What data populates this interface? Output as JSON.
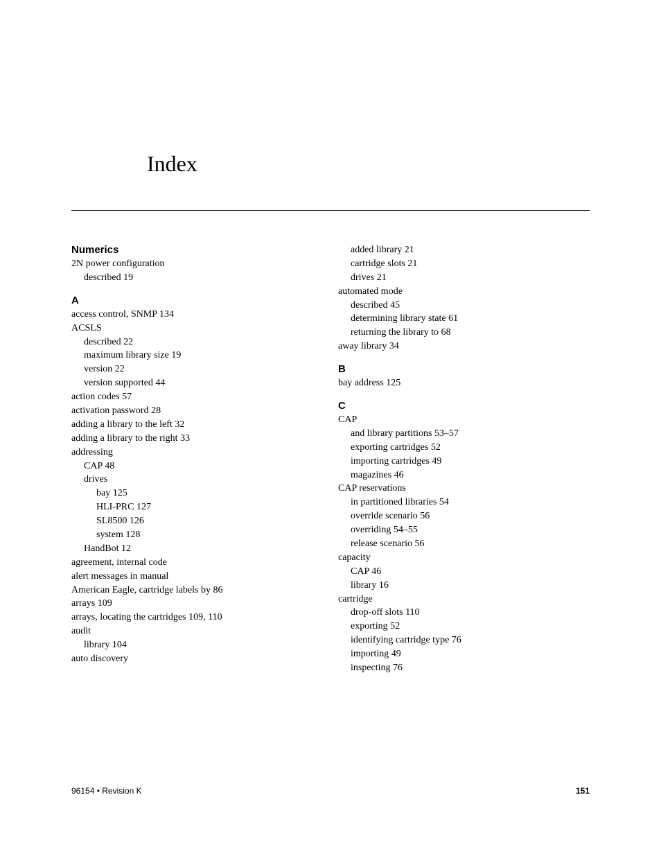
{
  "title": "Index",
  "footer": {
    "left": "96154 • Revision K",
    "page_number": "151"
  },
  "left_column": {
    "sections": [
      {
        "header": "Numerics",
        "entries": [
          {
            "text": "2N power configuration",
            "indent": 0
          },
          {
            "text": "described 19",
            "indent": 1
          }
        ]
      },
      {
        "header": "A",
        "entries": [
          {
            "text": "access control, SNMP 134",
            "indent": 0
          },
          {
            "text": "ACSLS",
            "indent": 0
          },
          {
            "text": "described 22",
            "indent": 1
          },
          {
            "text": "maximum library size 19",
            "indent": 1
          },
          {
            "text": "version 22",
            "indent": 1
          },
          {
            "text": "version supported 44",
            "indent": 1
          },
          {
            "text": "action codes 57",
            "indent": 0
          },
          {
            "text": "activation password 28",
            "indent": 0
          },
          {
            "text": "adding a library to the left 32",
            "indent": 0
          },
          {
            "text": "adding a library to the right 33",
            "indent": 0
          },
          {
            "text": "addressing",
            "indent": 0
          },
          {
            "text": "CAP 48",
            "indent": 1
          },
          {
            "text": "drives",
            "indent": 1
          },
          {
            "text": "bay 125",
            "indent": 2
          },
          {
            "text": "HLI-PRC 127",
            "indent": 2
          },
          {
            "text": "SL8500 126",
            "indent": 2
          },
          {
            "text": "system 128",
            "indent": 2
          },
          {
            "text": "HandBot 12",
            "indent": 1
          },
          {
            "text": "agreement, internal code",
            "indent": 0
          },
          {
            "text": "alert messages in manual",
            "indent": 0
          },
          {
            "text": "American Eagle, cartridge labels by 86",
            "indent": 0
          },
          {
            "text": "arrays 109",
            "indent": 0
          },
          {
            "text": "arrays, locating the cartridges 109, 110",
            "indent": 0
          },
          {
            "text": "audit",
            "indent": 0
          },
          {
            "text": "library 104",
            "indent": 1
          },
          {
            "text": "auto discovery",
            "indent": 0
          }
        ]
      }
    ]
  },
  "right_column": {
    "sections": [
      {
        "header": null,
        "entries": [
          {
            "text": "added library 21",
            "indent": 1
          },
          {
            "text": "cartridge slots 21",
            "indent": 1
          },
          {
            "text": "drives 21",
            "indent": 1
          },
          {
            "text": "automated mode",
            "indent": 0
          },
          {
            "text": "described 45",
            "indent": 1
          },
          {
            "text": "determining library state 61",
            "indent": 1
          },
          {
            "text": "returning the library to 68",
            "indent": 1
          },
          {
            "text": "away library 34",
            "indent": 0
          }
        ]
      },
      {
        "header": "B",
        "entries": [
          {
            "text": "bay address 125",
            "indent": 0
          }
        ]
      },
      {
        "header": "C",
        "entries": [
          {
            "text": "CAP",
            "indent": 0
          },
          {
            "text": "and library partitions 53–57",
            "indent": 1
          },
          {
            "text": "exporting cartridges 52",
            "indent": 1
          },
          {
            "text": "importing cartridges 49",
            "indent": 1
          },
          {
            "text": "magazines 46",
            "indent": 1
          },
          {
            "text": "CAP reservations",
            "indent": 0
          },
          {
            "text": "in partitioned libraries 54",
            "indent": 1
          },
          {
            "text": "override scenario 56",
            "indent": 1
          },
          {
            "text": "overriding 54–55",
            "indent": 1
          },
          {
            "text": "release scenario 56",
            "indent": 1
          },
          {
            "text": "capacity",
            "indent": 0
          },
          {
            "text": "CAP 46",
            "indent": 1
          },
          {
            "text": "library 16",
            "indent": 1
          },
          {
            "text": "cartridge",
            "indent": 0
          },
          {
            "text": "drop-off slots 110",
            "indent": 1
          },
          {
            "text": "exporting 52",
            "indent": 1
          },
          {
            "text": "identifying cartridge type 76",
            "indent": 1
          },
          {
            "text": "importing 49",
            "indent": 1
          },
          {
            "text": "inspecting 76",
            "indent": 1
          }
        ]
      }
    ]
  }
}
